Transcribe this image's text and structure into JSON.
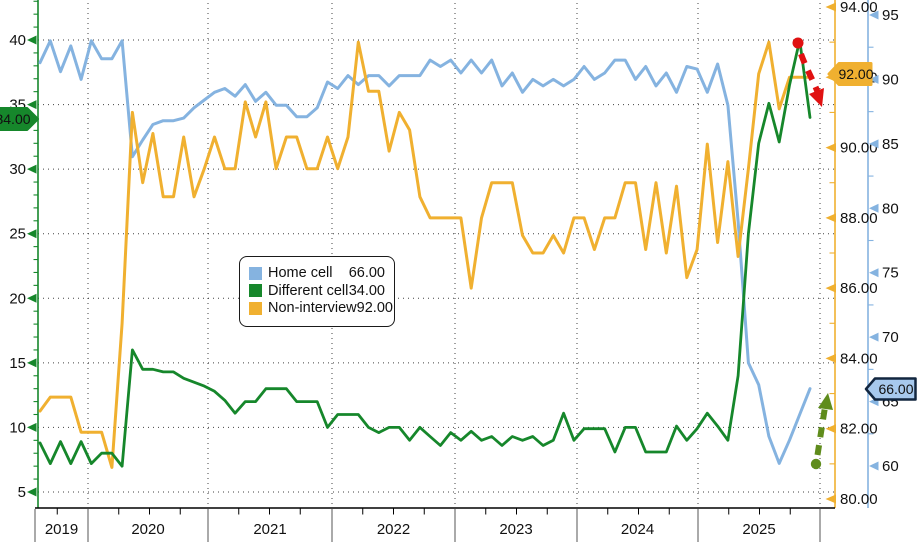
{
  "legend": {
    "items": [
      {
        "label": "Home cell",
        "value": "66.00",
        "color": "#85b3e0"
      },
      {
        "label": "Different cell",
        "value": "34.00",
        "color": "#16872b"
      },
      {
        "label": "Non-interview",
        "value": "92.00",
        "color": "#f0b030"
      }
    ]
  },
  "tags": {
    "different_cell": {
      "value": "34.00",
      "bg": "#16872b",
      "text": "#ffffff"
    },
    "non_interview": {
      "value": "92.00",
      "bg": "#f0b030",
      "text": "#111111"
    },
    "home_cell": {
      "value": "66.00",
      "bg": "#a7c9ed",
      "text": "#111111",
      "border": "#12263f"
    }
  },
  "annotations": [
    {
      "name": "projected-decline-arrow",
      "direction": "down",
      "color": "#e01111"
    },
    {
      "name": "projected-rise-arrow",
      "direction": "up",
      "color": "#5f8c1c"
    }
  ],
  "chart_data": {
    "type": "line",
    "x_axis": {
      "years": [
        "2019",
        "2020",
        "2021",
        "2022",
        "2023",
        "2024",
        "2025"
      ],
      "frequency": "monthly"
    },
    "axes": {
      "left": {
        "name": "left-green-axis",
        "color": "#16872b",
        "ylim": [
          5,
          40
        ],
        "ticks": [
          "40",
          "35",
          "30",
          "25",
          "20",
          "15",
          "10",
          "5"
        ]
      },
      "orange": {
        "name": "right-orange-axis",
        "color": "#f0b030",
        "ylim": [
          80,
          94
        ],
        "ticks": [
          "94.00",
          "92.00",
          "90.00",
          "88.00",
          "86.00",
          "84.00",
          "82.00",
          "80.00"
        ]
      },
      "blue": {
        "name": "far-right-blue-axis",
        "color": "#85b3e0",
        "ylim": [
          60,
          95
        ],
        "ticks": [
          "95",
          "90",
          "85",
          "80",
          "75",
          "70",
          "65",
          "60"
        ]
      }
    },
    "grid": {
      "horizontal": true,
      "vertical_year_lines": true,
      "style": "dotted"
    },
    "legend_position": "inside-left-center",
    "series": [
      {
        "name": "Home cell",
        "axis": "blue",
        "color": "#85b3e0",
        "last_value": 66.0,
        "values": [
          91.3,
          93.0,
          90.6,
          92.6,
          90.0,
          93.0,
          91.6,
          91.6,
          93.0,
          84.0,
          85.3,
          86.5,
          86.8,
          86.8,
          87.0,
          87.8,
          88.4,
          89.0,
          89.3,
          88.7,
          89.6,
          88.3,
          89.0,
          88.0,
          88.0,
          87.1,
          87.1,
          87.8,
          89.8,
          89.3,
          90.3,
          89.6,
          90.3,
          90.3,
          89.5,
          90.3,
          90.3,
          90.3,
          91.5,
          91.0,
          91.5,
          90.5,
          91.5,
          90.5,
          91.5,
          89.5,
          90.5,
          89.0,
          90.0,
          89.5,
          90.0,
          89.5,
          90.0,
          91.0,
          90.0,
          90.5,
          91.5,
          91.5,
          90.0,
          91.0,
          89.5,
          90.5,
          89.0,
          91.0,
          90.8,
          89.0,
          91.2,
          88.0,
          79.0,
          68.0,
          66.3,
          62.3,
          60.2,
          62.0,
          64.0,
          66.0
        ]
      },
      {
        "name": "Different cell",
        "axis": "left",
        "color": "#16872b",
        "last_value": 34.0,
        "values": [
          8.8,
          7.2,
          8.9,
          7.2,
          8.9,
          7.2,
          8.0,
          8.0,
          7.0,
          16.0,
          14.5,
          14.5,
          14.3,
          14.3,
          13.8,
          13.5,
          13.2,
          12.8,
          12.1,
          11.1,
          12.0,
          12.0,
          13.0,
          13.0,
          13.0,
          12.0,
          12.0,
          12.0,
          10.0,
          11.0,
          11.0,
          11.0,
          10.0,
          9.6,
          10.0,
          10.0,
          9.0,
          10.0,
          9.3,
          8.6,
          9.6,
          9.0,
          9.7,
          9.0,
          9.3,
          8.6,
          9.3,
          9.0,
          9.3,
          8.6,
          9.0,
          11.1,
          9.0,
          9.9,
          9.9,
          9.9,
          8.1,
          10.0,
          10.0,
          8.1,
          8.1,
          8.1,
          10.1,
          9.0,
          9.9,
          11.1,
          10.1,
          9.0,
          14.0,
          25.0,
          32.0,
          35.1,
          32.1,
          36.5,
          40.0,
          34.0
        ]
      },
      {
        "name": "Non-interview",
        "axis": "orange",
        "color": "#f0b030",
        "last_value": 92.0,
        "values": [
          82.5,
          82.9,
          82.9,
          82.9,
          81.9,
          81.9,
          81.9,
          80.9,
          85.0,
          91.0,
          89.0,
          90.4,
          88.6,
          88.6,
          90.3,
          88.6,
          89.4,
          90.3,
          89.4,
          89.4,
          91.3,
          90.3,
          91.3,
          89.4,
          90.3,
          90.3,
          89.4,
          89.4,
          90.3,
          89.4,
          90.3,
          93.0,
          91.6,
          91.6,
          89.9,
          91.0,
          90.5,
          88.6,
          88.0,
          88.0,
          88.0,
          88.0,
          86.0,
          88.0,
          89.0,
          89.0,
          89.0,
          87.5,
          87.0,
          87.0,
          87.5,
          87.0,
          88.0,
          88.0,
          87.1,
          88.0,
          88.0,
          89.0,
          89.0,
          87.1,
          89.0,
          87.0,
          88.9,
          86.3,
          87.1,
          90.1,
          87.3,
          89.6,
          86.9,
          89.4,
          92.1,
          93.0,
          91.1,
          92.0,
          92.0,
          92.0
        ]
      }
    ]
  }
}
